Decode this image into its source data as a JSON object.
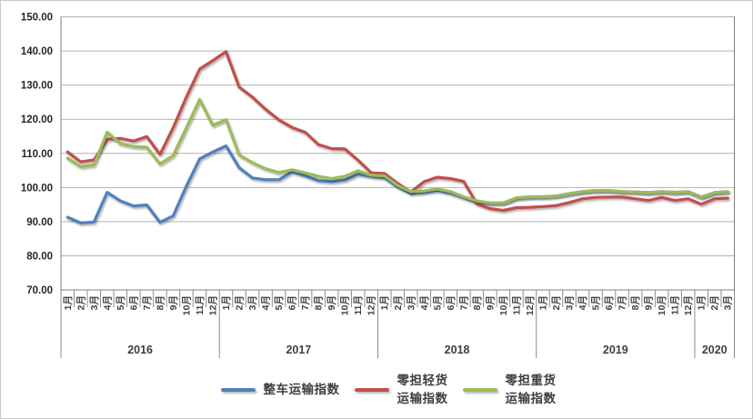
{
  "chart_data": {
    "type": "line",
    "title": "",
    "grid": true,
    "legend_position": "bottom",
    "y_axis": {
      "min": 70,
      "max": 150,
      "step": 10,
      "tick_labels": [
        "150.00",
        "140.00",
        "130.00",
        "120.00",
        "110.00",
        "100.00",
        "90.00",
        "80.00",
        "70.00"
      ]
    },
    "x_axis": {
      "years": [
        {
          "label": "2016",
          "months": [
            "1月",
            "2月",
            "3月",
            "4月",
            "5月",
            "6月",
            "7月",
            "8月",
            "9月",
            "10月",
            "11月",
            "12月"
          ]
        },
        {
          "label": "2017",
          "months": [
            "1月",
            "2月",
            "3月",
            "4月",
            "5月",
            "6月",
            "7月",
            "8月",
            "9月",
            "10月",
            "11月",
            "12月"
          ]
        },
        {
          "label": "2018",
          "months": [
            "1月",
            "2月",
            "3月",
            "4月",
            "5月",
            "6月",
            "7月",
            "8月",
            "9月",
            "10月",
            "11月",
            "12月"
          ]
        },
        {
          "label": "2019",
          "months": [
            "1月",
            "2月",
            "3月",
            "4月",
            "5月",
            "6月",
            "7月",
            "8月",
            "9月",
            "10月",
            "11月",
            "12月"
          ]
        },
        {
          "label": "2020",
          "months": [
            "1月",
            "2月",
            "3月"
          ]
        }
      ]
    },
    "series": [
      {
        "name": "整车运输指数",
        "legend_label": "整车运输指数",
        "color": "#4F81BD",
        "values": [
          91.3,
          89.6,
          89.9,
          98.6,
          96.1,
          94.6,
          94.9,
          89.8,
          91.7,
          100.4,
          108.4,
          110.4,
          112.2,
          105.8,
          102.8,
          102.3,
          102.3,
          104.6,
          103.4,
          102.0,
          101.7,
          102.2,
          103.9,
          103.3,
          102.9,
          100.2,
          98.3,
          98.6,
          99.2,
          98.4,
          97.1,
          95.7,
          95.4,
          95.5,
          96.9,
          97.2,
          97.3,
          97.5,
          98.2,
          98.8,
          99.1,
          99.1,
          98.8,
          98.7,
          98.5,
          98.8,
          98.6,
          98.8,
          97.2,
          98.5,
          98.8
        ]
      },
      {
        "name": "零担轻货运输指数",
        "legend_label": "零担轻货\n运输指数",
        "color": "#C0504D",
        "values": [
          110.4,
          107.5,
          108.1,
          114.1,
          114.4,
          113.6,
          114.9,
          109.7,
          117.5,
          126.5,
          134.7,
          137.2,
          139.8,
          129.4,
          126.5,
          122.9,
          119.8,
          117.6,
          116.2,
          112.6,
          111.4,
          111.3,
          108.0,
          104.3,
          104.1,
          101.2,
          98.7,
          101.7,
          103.0,
          102.6,
          101.8,
          95.2,
          93.8,
          93.3,
          94.1,
          94.2,
          94.4,
          94.7,
          95.6,
          96.7,
          97.1,
          97.2,
          97.2,
          96.7,
          96.2,
          97.1,
          96.2,
          96.7,
          95.1,
          96.7,
          96.9
        ]
      },
      {
        "name": "零担重货运输指数",
        "legend_label": "零担重货\n运输指数",
        "color": "#9BBB59",
        "values": [
          108.6,
          106.1,
          106.6,
          116.2,
          112.9,
          112.0,
          111.8,
          106.9,
          109.4,
          117.5,
          125.8,
          118.2,
          119.9,
          109.5,
          107.3,
          105.5,
          104.4,
          105.2,
          104.3,
          103.3,
          102.6,
          103.3,
          104.9,
          103.6,
          103.4,
          100.6,
          98.8,
          99.0,
          99.6,
          98.8,
          97.3,
          96.1,
          95.5,
          95.5,
          97.0,
          97.3,
          97.3,
          97.5,
          98.2,
          98.8,
          99.1,
          99.1,
          98.8,
          98.7,
          98.5,
          98.8,
          98.6,
          98.8,
          97.2,
          98.5,
          98.8
        ]
      }
    ],
    "style": {
      "gridline_color": "#b2b2b2",
      "axis_color": "#7f7f7f",
      "tick_color": "#8c8c8c",
      "axis_label_color": "#262626",
      "month_label_color": "#3f3f3f",
      "year_label_color": "#3f3f3f"
    }
  }
}
